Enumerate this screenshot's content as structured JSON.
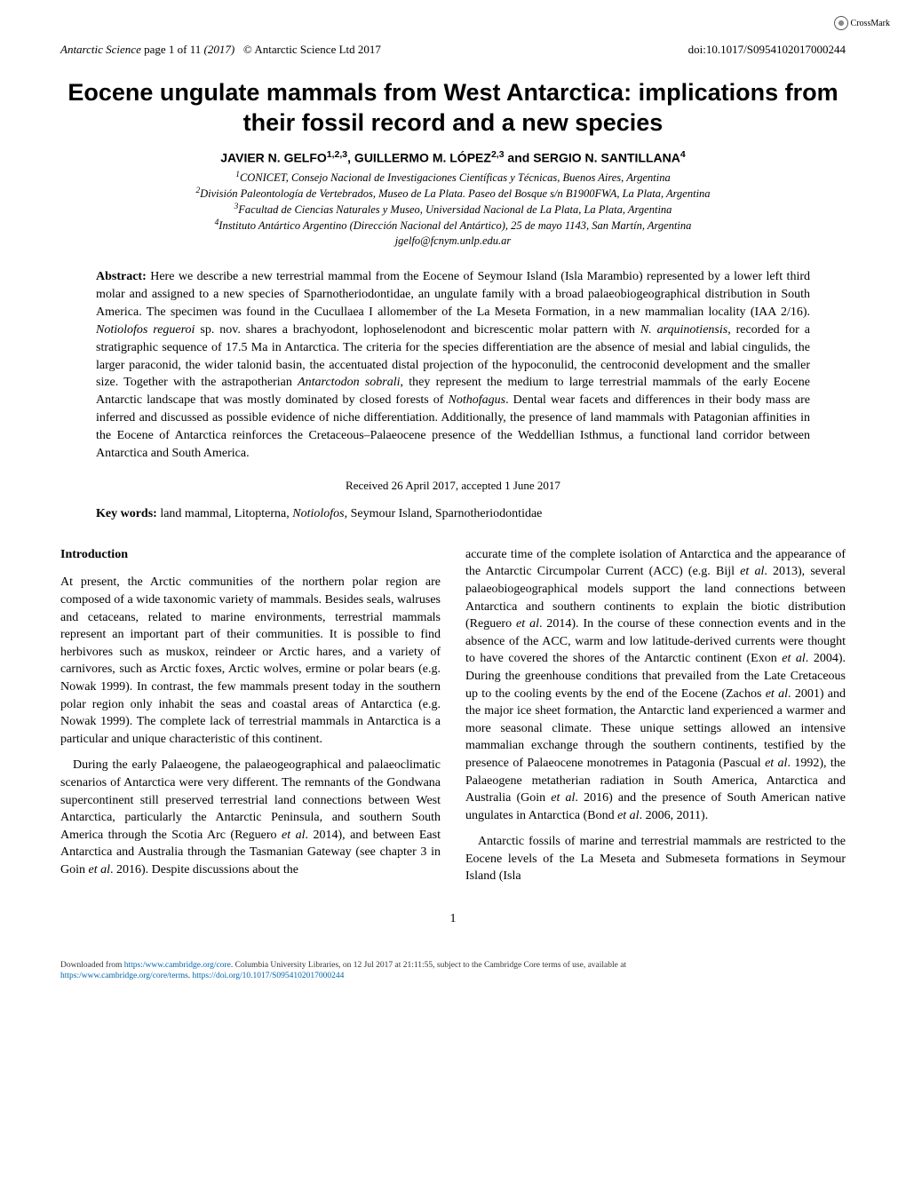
{
  "header": {
    "journal": "Antarctic Science",
    "pages": "page 1 of 11",
    "year": "(2017)",
    "copyright": "© Antarctic Science Ltd 2017",
    "doi": "doi:10.1017/S0954102017000244"
  },
  "crossmark": "CrossMark",
  "title": "Eocene ungulate mammals from West Antarctica: implications from their fossil record and a new species",
  "authors": "JAVIER N. GELFO",
  "authors_sup1": "1,2,3",
  "authors_mid": ", GUILLERMO M. LÓPEZ",
  "authors_sup2": "2,3",
  "authors_and": " and SERGIO N. SANTILLANA",
  "authors_sup3": "4",
  "affiliations": {
    "a1_sup": "1",
    "a1": "CONICET, Consejo Nacional de Investigaciones Científicas y Técnicas, Buenos Aires, Argentina",
    "a2_sup": "2",
    "a2": "División Paleontología de Vertebrados, Museo de La Plata. Paseo del Bosque s/n B1900FWA, La Plata, Argentina",
    "a3_sup": "3",
    "a3": "Facultad de Ciencias Naturales y Museo, Universidad Nacional de La Plata, La Plata, Argentina",
    "a4_sup": "4",
    "a4": "Instituto Antártico Argentino (Dirección Nacional del Antártico), 25 de mayo 1143, San Martín, Argentina",
    "email": "jgelfo@fcnym.unlp.edu.ar"
  },
  "abstract_label": "Abstract:",
  "abstract": " Here we describe a new terrestrial mammal from the Eocene of Seymour Island (Isla Marambio) represented by a lower left third molar and assigned to a new species of Sparnotheriodontidae, an ungulate family with a broad palaeobiogeographical distribution in South America. The specimen was found in the Cucullaea I allomember of the La Meseta Formation, in a new mammalian locality (IAA 2/16). Notiolofos regueroi sp. nov. shares a brachyodont, lophoselenodont and bicrescentic molar pattern with N. arquinotiensis, recorded for a stratigraphic sequence of 17.5 Ma in Antarctica. The criteria for the species differentiation are the absence of mesial and labial cingulids, the larger paraconid, the wider talonid basin, the accentuated distal projection of the hypoconulid, the centroconid development and the smaller size. Together with the astrapotherian Antarctodon sobrali, they represent the medium to large terrestrial mammals of the early Eocene Antarctic landscape that was mostly dominated by closed forests of Nothofagus. Dental wear facets and differences in their body mass are inferred and discussed as possible evidence of niche differentiation. Additionally, the presence of land mammals with Patagonian affinities in the Eocene of Antarctica reinforces the Cretaceous–Palaeocene presence of the Weddellian Isthmus, a functional land corridor between Antarctica and South America.",
  "received": "Received 26 April 2017, accepted 1 June 2017",
  "keywords_label": "Key words:",
  "keywords": " land mammal, Litopterna, Notiolofos, Seymour Island, Sparnotheriodontidae",
  "intro_heading": "Introduction",
  "col1_p1": "At present, the Arctic communities of the northern polar region are composed of a wide taxonomic variety of mammals. Besides seals, walruses and cetaceans, related to marine environments, terrestrial mammals represent an important part of their communities. It is possible to find herbivores such as muskox, reindeer or Arctic hares, and a variety of carnivores, such as Arctic foxes, Arctic wolves, ermine or polar bears (e.g. Nowak 1999). In contrast, the few mammals present today in the southern polar region only inhabit the seas and coastal areas of Antarctica (e.g. Nowak 1999). The complete lack of terrestrial mammals in Antarctica is a particular and unique characteristic of this continent.",
  "col1_p2": "During the early Palaeogene, the palaeogeographical and palaeoclimatic scenarios of Antarctica were very different. The remnants of the Gondwana supercontinent still preserved terrestrial land connections between West Antarctica, particularly the Antarctic Peninsula, and southern South America through the Scotia Arc (Reguero et al. 2014), and between East Antarctica and Australia through the Tasmanian Gateway (see chapter 3 in Goin et al. 2016). Despite discussions about the",
  "col2_p1": "accurate time of the complete isolation of Antarctica and the appearance of the Antarctic Circumpolar Current (ACC) (e.g. Bijl et al. 2013), several palaeobiogeographical models support the land connections between Antarctica and southern continents to explain the biotic distribution (Reguero et al. 2014). In the course of these connection events and in the absence of the ACC, warm and low latitude-derived currents were thought to have covered the shores of the Antarctic continent (Exon et al. 2004). During the greenhouse conditions that prevailed from the Late Cretaceous up to the cooling events by the end of the Eocene (Zachos et al. 2001) and the major ice sheet formation, the Antarctic land experienced a warmer and more seasonal climate. These unique settings allowed an intensive mammalian exchange through the southern continents, testified by the presence of Palaeocene monotremes in Patagonia (Pascual et al. 1992), the Palaeogene metatherian radiation in South America, Antarctica and Australia (Goin et al. 2016) and the presence of South American native ungulates in Antarctica (Bond et al. 2006, 2011).",
  "col2_p2": "Antarctic fossils of marine and terrestrial mammals are restricted to the Eocene levels of the La Meseta and Submeseta formations in Seymour Island (Isla",
  "page_number": "1",
  "footer": {
    "line1_pre": "Downloaded from ",
    "line1_link1": "https:/www.cambridge.org/core",
    "line1_mid": ". Columbia University Libraries, on 12 Jul 2017 at 21:11:55, subject to the Cambridge Core terms of use, available at",
    "line2_link1": "https:/www.cambridge.org/core/terms",
    "line2_mid": ". ",
    "line2_link2": "https://doi.org/10.1017/S0954102017000244"
  }
}
